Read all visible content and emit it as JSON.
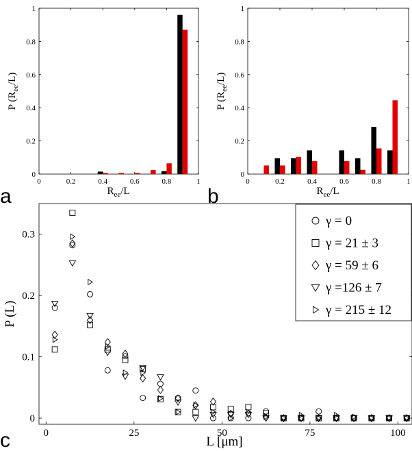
{
  "panel_letters": {
    "a": "a",
    "b": "b",
    "c": "c"
  },
  "colors": {
    "series_black": "#000000",
    "series_red": "#e00000"
  },
  "chart_data": [
    {
      "id": "a",
      "type": "bar",
      "xlabel": "Rₑₑ/L",
      "xlabel_main": "R",
      "xlabel_sub": "ee",
      "xlabel_rest": "/L",
      "ylabel_main": "P (R",
      "ylabel_sub": "ee",
      "ylabel_rest": "/L)",
      "xlim": [
        0,
        1
      ],
      "ylim": [
        0,
        1
      ],
      "xticks": [
        "0",
        "0.2",
        "0.4",
        "0.6",
        "0.8",
        "1"
      ],
      "yticks": [
        "0",
        "0.2",
        "0.4",
        "0.6",
        "0.8",
        "1"
      ],
      "bin_centers": [
        0.4,
        0.5,
        0.6,
        0.7,
        0.8,
        0.9
      ],
      "series": [
        {
          "color": "black",
          "values": [
            0.015,
            0.0,
            0.0,
            0.0,
            0.018,
            0.96
          ]
        },
        {
          "color": "red",
          "values": [
            0.008,
            0.008,
            0.008,
            0.025,
            0.065,
            0.87
          ]
        }
      ]
    },
    {
      "id": "b",
      "type": "bar",
      "xlabel_main": "R",
      "xlabel_sub": "ee",
      "xlabel_rest": "/L",
      "ylabel_main": "P (R",
      "ylabel_sub": "ee",
      "ylabel_rest": "/L)",
      "xlim": [
        0,
        1
      ],
      "ylim": [
        0,
        1
      ],
      "xticks": [
        "0",
        "0.2",
        "0.4",
        "0.6",
        "0.8",
        "1"
      ],
      "yticks": [
        "0",
        "0.2",
        "0.4",
        "0.6",
        "0.8",
        "1"
      ],
      "bin_centers": [
        0.1,
        0.2,
        0.3,
        0.4,
        0.5,
        0.6,
        0.7,
        0.8,
        0.9
      ],
      "series": [
        {
          "color": "black",
          "values": [
            0.0,
            0.095,
            0.095,
            0.143,
            0.0,
            0.143,
            0.095,
            0.285,
            0.143
          ]
        },
        {
          "color": "red",
          "values": [
            0.052,
            0.052,
            0.104,
            0.078,
            0.0,
            0.078,
            0.026,
            0.155,
            0.445
          ]
        }
      ]
    },
    {
      "id": "c",
      "type": "scatter",
      "xlabel": "L [μm]",
      "ylabel": "P (L)",
      "xlim": [
        -2,
        104
      ],
      "ylim": [
        -0.01,
        0.35
      ],
      "xticks": [
        0,
        25,
        50,
        75,
        100
      ],
      "xtick_labels": [
        "0",
        "25",
        "50",
        "75",
        "100"
      ],
      "yticks": [
        0,
        0.1,
        0.2,
        0.3
      ],
      "ytick_labels": [
        "0",
        "0.1",
        "0.2",
        "0.3"
      ],
      "x": [
        2.5,
        7.5,
        12.5,
        17.5,
        22.5,
        27.5,
        32.5,
        37.5,
        42.5,
        47.5,
        52.5,
        57.5,
        62.5,
        67.5,
        72.5,
        77.5,
        82.5,
        87.5,
        92.5,
        97.5,
        102.5
      ],
      "series": [
        {
          "name": "γ = 0",
          "marker": "circle",
          "values": [
            0.18,
            0.282,
            0.202,
            0.078,
            0.101,
            0.033,
            0.056,
            0.033,
            0.045,
            0.0,
            0.0,
            0.0,
            0.011,
            0.0,
            0.0,
            0.011,
            0.0,
            0.0,
            0.0,
            0.0,
            0.0
          ]
        },
        {
          "name": "γ = 21 ± 3",
          "marker": "square",
          "values": [
            0.112,
            0.335,
            0.152,
            0.112,
            0.095,
            0.08,
            0.031,
            0.01,
            0.01,
            0.018,
            0.015,
            0.018,
            0.008,
            0.0,
            0.0,
            0.0,
            0.0,
            0.0,
            0.0,
            0.0,
            0.0
          ]
        },
        {
          "name": "γ = 59 ± 6",
          "marker": "diamond",
          "values": [
            0.136,
            0.285,
            0.16,
            0.124,
            0.105,
            0.065,
            0.046,
            0.032,
            0.021,
            0.027,
            0.007,
            0.007,
            0.001,
            0.0,
            0.0,
            0.0,
            0.0,
            0.0,
            0.0,
            0.0,
            0.0
          ]
        },
        {
          "name": "γ =126 ± 7",
          "marker": "triangle-down",
          "values": [
            0.187,
            0.253,
            0.167,
            0.107,
            0.068,
            0.082,
            0.067,
            0.026,
            0.0,
            0.006,
            0.006,
            0.006,
            0.0,
            0.0,
            0.0,
            0.0,
            0.0,
            0.0,
            0.0,
            0.0,
            0.0
          ]
        },
        {
          "name": "γ = 215 ± 12",
          "marker": "triangle-right",
          "values": [
            0.128,
            0.296,
            0.222,
            0.117,
            0.074,
            0.074,
            0.032,
            0.01,
            0.021,
            0.01,
            0.0,
            0.01,
            0.002,
            0.0,
            0.005,
            0.0,
            0.005,
            0.002,
            0.0,
            0.0,
            0.0
          ]
        }
      ],
      "legend_position": "top-right"
    }
  ]
}
